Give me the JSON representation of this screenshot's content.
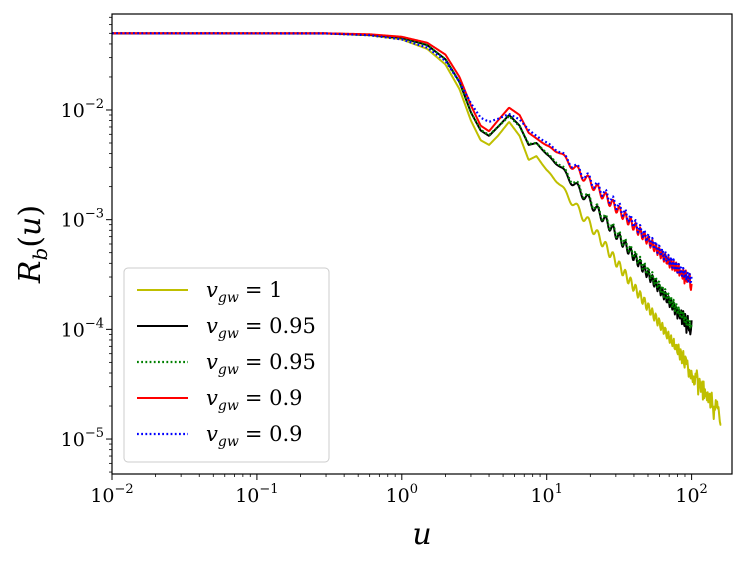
{
  "chart_data": {
    "type": "line",
    "title": "",
    "xlabel": "u",
    "ylabel": "R_b(u)",
    "xscale": "log",
    "yscale": "log",
    "xlim": [
      0.01,
      190
    ],
    "ylim": [
      4.8e-06,
      0.075
    ],
    "x_ticks": [
      {
        "value": 0.01,
        "base": "10",
        "exp": "−2"
      },
      {
        "value": 0.1,
        "base": "10",
        "exp": "−1"
      },
      {
        "value": 1,
        "base": "10",
        "exp": "0"
      },
      {
        "value": 10,
        "base": "10",
        "exp": "1"
      },
      {
        "value": 100,
        "base": "10",
        "exp": "2"
      }
    ],
    "y_ticks": [
      {
        "value": 1e-05,
        "base": "10",
        "exp": "−5"
      },
      {
        "value": 0.0001,
        "base": "10",
        "exp": "−4"
      },
      {
        "value": 0.001,
        "base": "10",
        "exp": "−3"
      },
      {
        "value": 0.01,
        "base": "10",
        "exp": "−2"
      }
    ],
    "legend_position": "lower-left",
    "series": [
      {
        "name": "v_gw = 1",
        "legend_label": "= 1",
        "color": "#bfbf00",
        "style": "solid",
        "x_max": 160,
        "tail_exponent": -2.0,
        "points": [
          [
            0.01,
            0.05
          ],
          [
            0.3,
            0.0498
          ],
          [
            0.6,
            0.048
          ],
          [
            1.0,
            0.044
          ],
          [
            1.5,
            0.036
          ],
          [
            2.0,
            0.026
          ],
          [
            2.5,
            0.0155
          ],
          [
            3.0,
            0.008
          ],
          [
            3.5,
            0.0053
          ],
          [
            4.0,
            0.0048
          ],
          [
            4.6,
            0.0058
          ],
          [
            5.5,
            0.0078
          ],
          [
            6.5,
            0.0058
          ],
          [
            7.5,
            0.0035
          ],
          [
            8.5,
            0.0038
          ],
          [
            10,
            0.0028
          ],
          [
            12,
            0.0022
          ],
          [
            15,
            0.00145
          ],
          [
            20,
            0.0009
          ],
          [
            30,
            0.00042
          ],
          [
            50,
            0.00016
          ],
          [
            70,
            8.5e-05
          ],
          [
            100,
            4.2e-05
          ],
          [
            130,
            2.4e-05
          ],
          [
            160,
            1.55e-05
          ]
        ]
      },
      {
        "name": "v_gw = 0.95",
        "legend_label": "= 0.95",
        "color": "#000000",
        "style": "solid",
        "x_max": 100,
        "tail_exponent": -1.75,
        "points": [
          [
            0.01,
            0.05
          ],
          [
            0.3,
            0.0499
          ],
          [
            0.6,
            0.0485
          ],
          [
            1.0,
            0.0455
          ],
          [
            1.5,
            0.039
          ],
          [
            2.0,
            0.029
          ],
          [
            2.5,
            0.018
          ],
          [
            3.0,
            0.0095
          ],
          [
            3.5,
            0.0065
          ],
          [
            4.0,
            0.0058
          ],
          [
            4.6,
            0.007
          ],
          [
            5.5,
            0.009
          ],
          [
            6.5,
            0.0072
          ],
          [
            7.5,
            0.0048
          ],
          [
            8.5,
            0.005
          ],
          [
            10,
            0.0039
          ],
          [
            12,
            0.0032
          ],
          [
            15,
            0.0022
          ],
          [
            20,
            0.00145
          ],
          [
            30,
            0.00075
          ],
          [
            50,
            0.00032
          ],
          [
            70,
            0.00018
          ],
          [
            100,
            0.0001
          ]
        ]
      },
      {
        "name": "v_gw = 0.95",
        "legend_label": "= 0.95",
        "color": "#008000",
        "style": "dotted",
        "x_max": 100,
        "tail_exponent": 0,
        "points": [
          [
            0.01,
            0.05
          ],
          [
            0.3,
            0.0499
          ],
          [
            0.6,
            0.0485
          ],
          [
            1.0,
            0.0455
          ],
          [
            1.5,
            0.039
          ],
          [
            2.0,
            0.029
          ],
          [
            2.5,
            0.018
          ],
          [
            3.0,
            0.0095
          ],
          [
            3.5,
            0.0066
          ],
          [
            4.0,
            0.0059
          ],
          [
            4.6,
            0.007
          ],
          [
            5.5,
            0.0088
          ],
          [
            6.5,
            0.0071
          ],
          [
            7.5,
            0.0049
          ],
          [
            8.5,
            0.005
          ],
          [
            10,
            0.004
          ],
          [
            12,
            0.0033
          ],
          [
            15,
            0.0023
          ],
          [
            20,
            0.0015
          ],
          [
            30,
            0.00078
          ],
          [
            50,
            0.00034
          ],
          [
            70,
            0.00019
          ],
          [
            100,
            0.000105
          ]
        ]
      },
      {
        "name": "v_gw = 0.9",
        "legend_label": "= 0.9",
        "color": "#ff0000",
        "style": "solid",
        "x_max": 100,
        "tail_exponent": -1.5,
        "points": [
          [
            0.01,
            0.05
          ],
          [
            0.3,
            0.05
          ],
          [
            0.6,
            0.049
          ],
          [
            1.0,
            0.0465
          ],
          [
            1.5,
            0.041
          ],
          [
            2.0,
            0.032
          ],
          [
            2.5,
            0.02
          ],
          [
            3.0,
            0.011
          ],
          [
            3.5,
            0.0072
          ],
          [
            4.0,
            0.0064
          ],
          [
            4.6,
            0.008
          ],
          [
            5.5,
            0.0105
          ],
          [
            6.5,
            0.009
          ],
          [
            7.5,
            0.0062
          ],
          [
            8.5,
            0.0055
          ],
          [
            10,
            0.0047
          ],
          [
            12,
            0.0042
          ],
          [
            15,
            0.0031
          ],
          [
            20,
            0.0022
          ],
          [
            30,
            0.0013
          ],
          [
            50,
            0.00065
          ],
          [
            70,
            0.00041
          ],
          [
            100,
            0.00027
          ]
        ]
      },
      {
        "name": "v_gw = 0.9",
        "legend_label": "= 0.9",
        "color": "#0000ff",
        "style": "dotted",
        "x_max": 100,
        "tail_exponent": 0,
        "points": [
          [
            0.01,
            0.05
          ],
          [
            0.3,
            0.0498
          ],
          [
            0.6,
            0.048
          ],
          [
            1.0,
            0.044
          ],
          [
            1.5,
            0.037
          ],
          [
            2.0,
            0.028
          ],
          [
            2.5,
            0.018
          ],
          [
            3.0,
            0.0115
          ],
          [
            3.5,
            0.0085
          ],
          [
            4.0,
            0.0078
          ],
          [
            4.6,
            0.0083
          ],
          [
            5.5,
            0.0092
          ],
          [
            6.5,
            0.0082
          ],
          [
            7.5,
            0.0066
          ],
          [
            8.5,
            0.0058
          ],
          [
            10,
            0.005
          ],
          [
            12,
            0.0043
          ],
          [
            15,
            0.0032
          ],
          [
            20,
            0.0023
          ],
          [
            30,
            0.0014
          ],
          [
            50,
            0.00068
          ],
          [
            70,
            0.00043
          ],
          [
            100,
            0.00028
          ]
        ]
      }
    ]
  }
}
